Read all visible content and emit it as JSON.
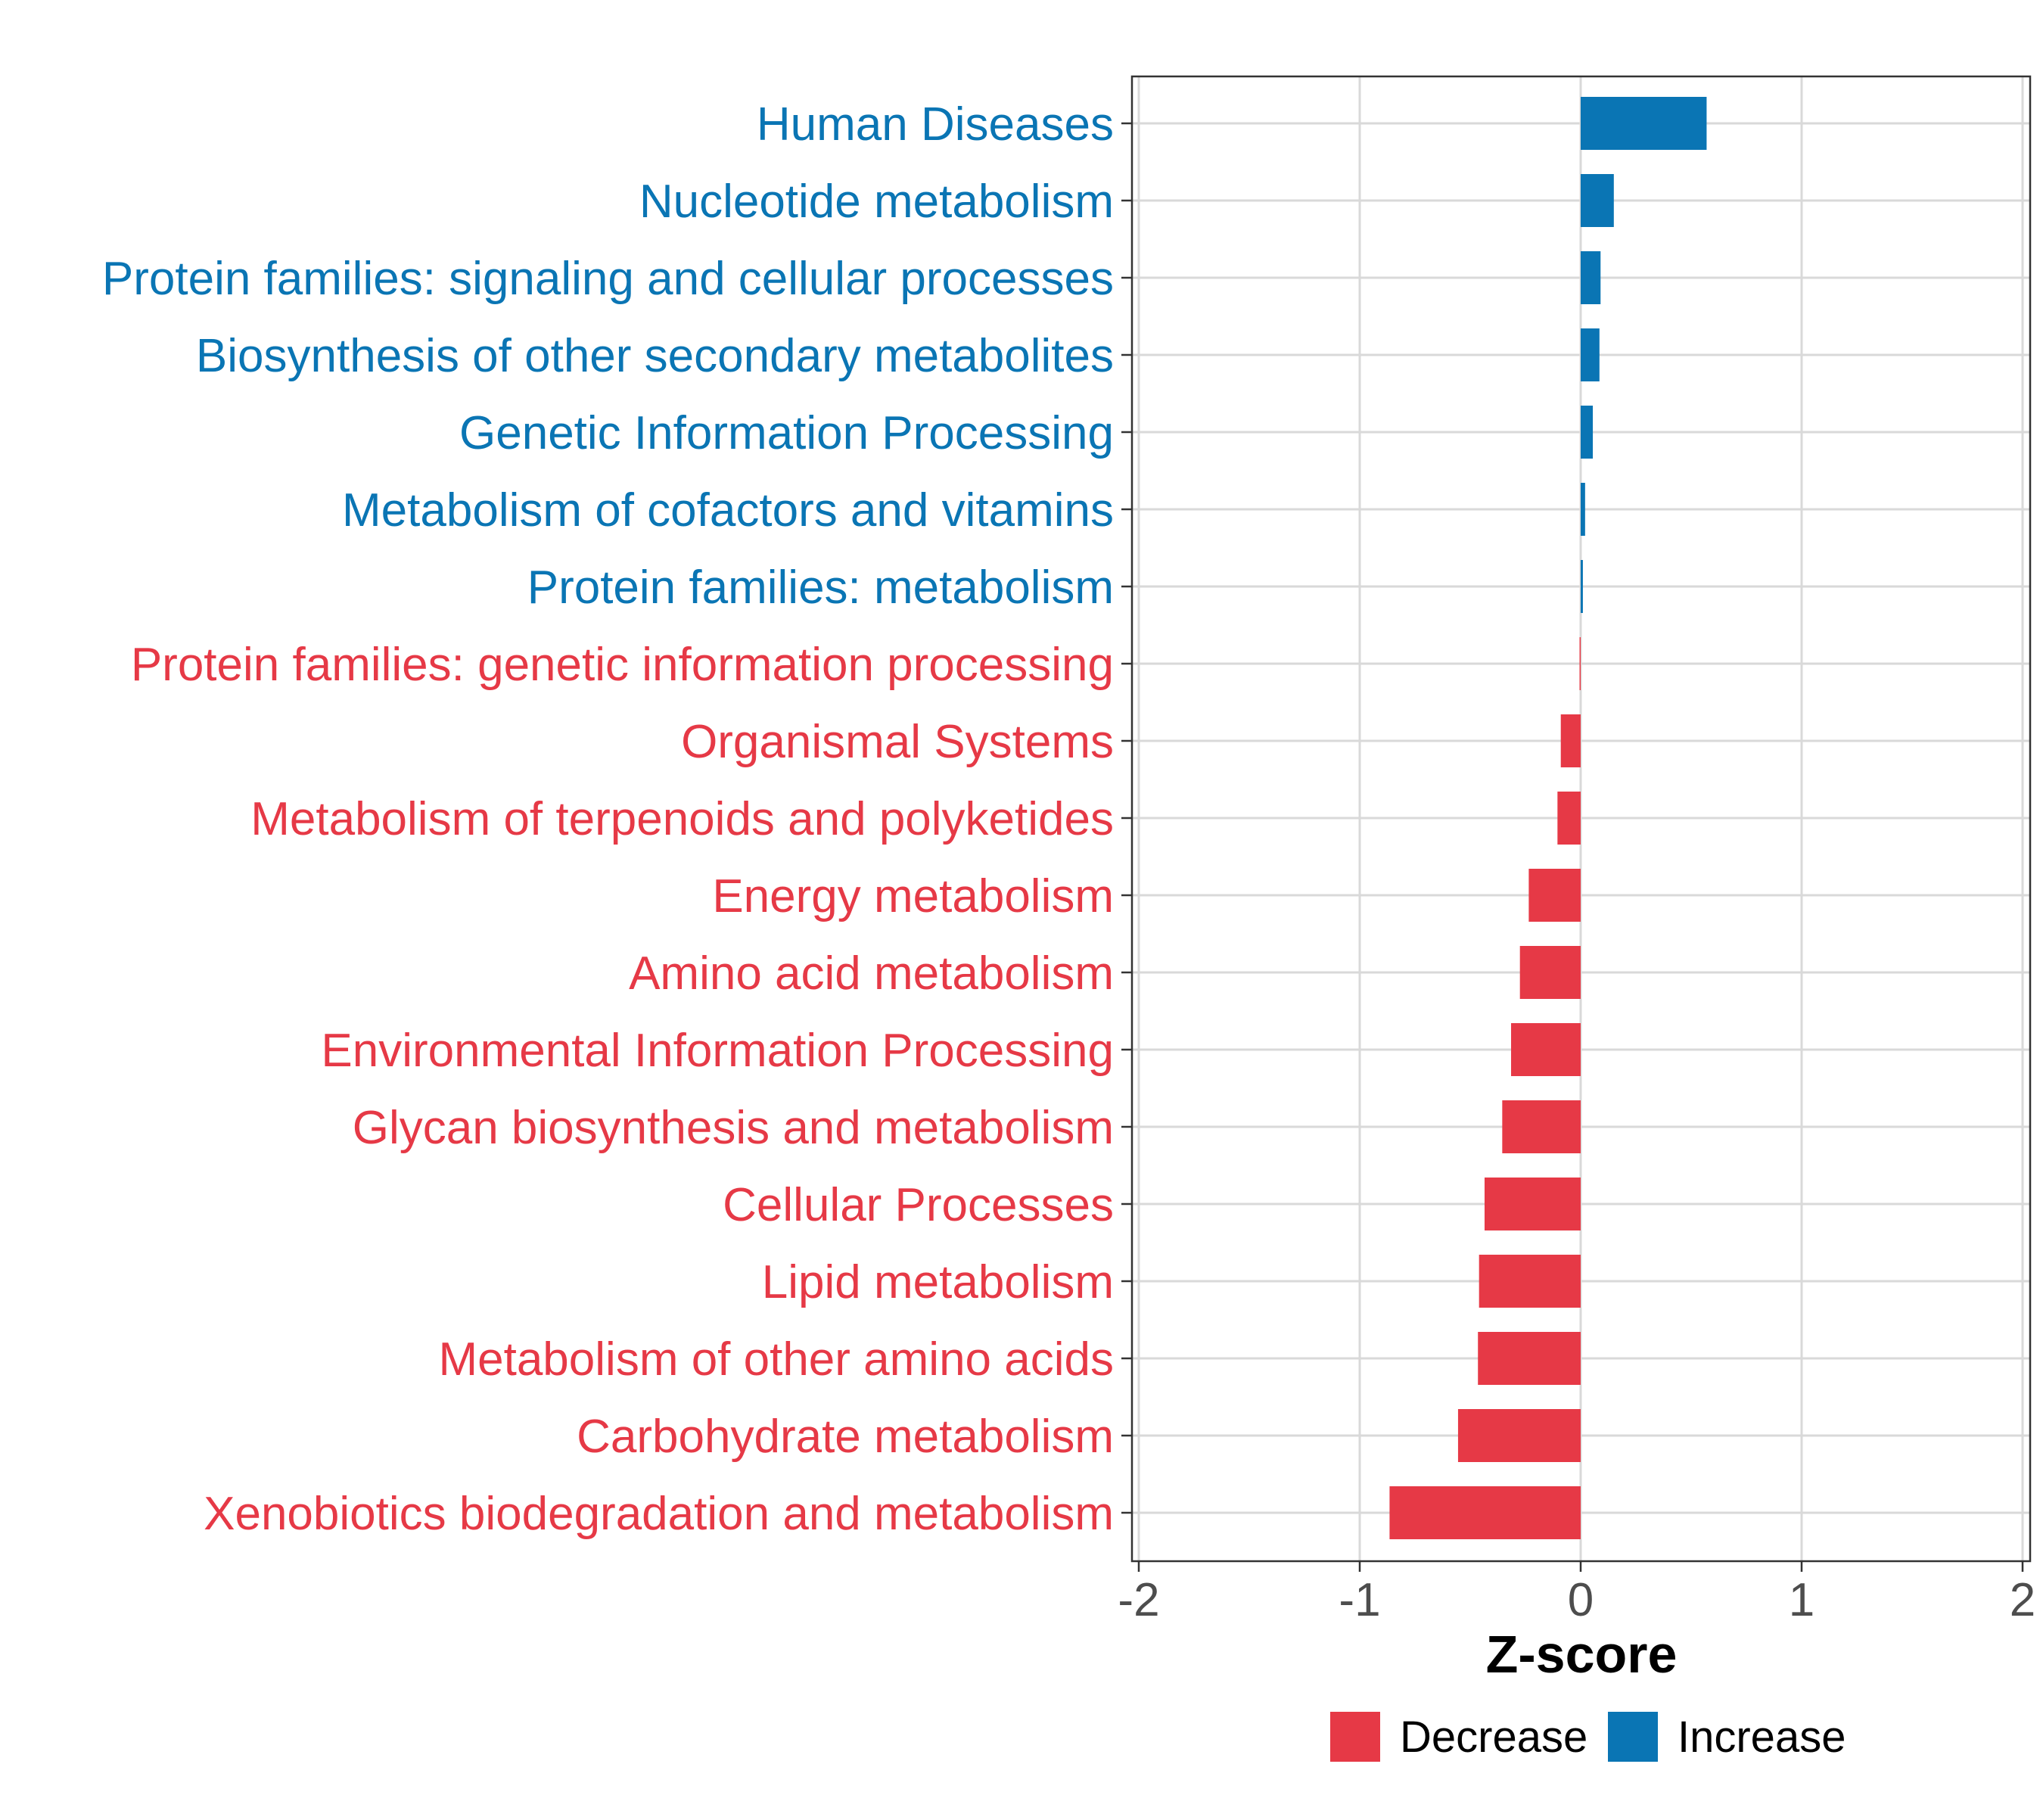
{
  "chart_data": {
    "type": "bar",
    "orientation": "horizontal",
    "xlabel": "Z-score",
    "ylabel": "",
    "xlim": [
      -2,
      2
    ],
    "xticks": [
      -2,
      -1,
      0,
      1,
      2
    ],
    "xtick_labels": [
      "-2",
      "-1",
      "0",
      "1",
      "2"
    ],
    "grid": true,
    "legend_position": "bottom",
    "categories": [
      "Human Diseases",
      "Nucleotide metabolism",
      "Protein families: signaling and cellular processes",
      "Biosynthesis of other secondary metabolites",
      "Genetic Information Processing",
      "Metabolism of cofactors and vitamins",
      "Protein families: metabolism",
      "Protein families: genetic information processing",
      "Organismal Systems",
      "Metabolism of terpenoids and polyketides",
      "Energy metabolism",
      "Amino acid metabolism",
      "Environmental Information Processing",
      "Glycan biosynthesis and metabolism",
      "Cellular Processes",
      "Lipid metabolism",
      "Metabolism of other amino acids",
      "Carbohydrate metabolism",
      "Xenobiotics biodegradation and metabolism"
    ],
    "values": [
      0.57,
      0.15,
      0.09,
      0.085,
      0.055,
      0.02,
      0.01,
      -0.005,
      -0.09,
      -0.105,
      -0.235,
      -0.275,
      -0.315,
      -0.355,
      -0.435,
      -0.46,
      -0.465,
      -0.555,
      -0.865
    ],
    "groups": [
      "Increase",
      "Increase",
      "Increase",
      "Increase",
      "Increase",
      "Increase",
      "Increase",
      "Decrease",
      "Decrease",
      "Decrease",
      "Decrease",
      "Decrease",
      "Decrease",
      "Decrease",
      "Decrease",
      "Decrease",
      "Decrease",
      "Decrease",
      "Decrease"
    ],
    "legend": [
      {
        "name": "Decrease",
        "color": "#e63946"
      },
      {
        "name": "Increase",
        "color": "#0a75b4"
      }
    ]
  }
}
